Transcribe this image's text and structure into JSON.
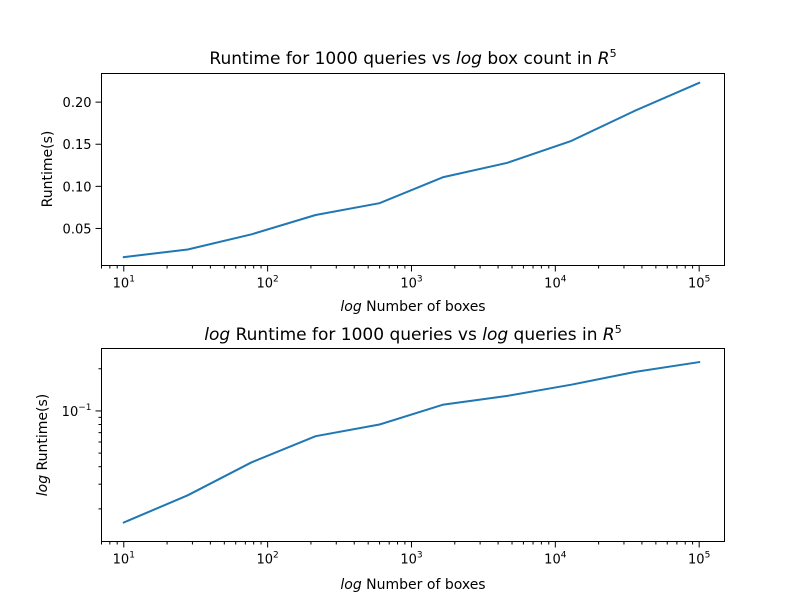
{
  "chart_data": [
    {
      "type": "line",
      "title": "Runtime for 1000 queries vs log box count in R^5",
      "title_parts": {
        "pre": "Runtime for 1000 queries vs ",
        "log": "log",
        "post": " box count in ",
        "var": "R",
        "exp": "5"
      },
      "xlabel_parts": {
        "log": "log",
        "rest": " Number of boxes"
      },
      "ylabel": "Runtime(s)",
      "xscale": "log",
      "yscale": "linear",
      "xlim": [
        7,
        150000
      ],
      "ylim": [
        0.006,
        0.234
      ],
      "xticks": [
        10,
        100,
        1000,
        10000,
        100000
      ],
      "xtick_exponents": [
        "1",
        "2",
        "3",
        "4",
        "5"
      ],
      "yticks": [
        0.05,
        0.1,
        0.15,
        0.2
      ],
      "ytick_labels": [
        "0.05",
        "0.10",
        "0.15",
        "0.20"
      ],
      "grid": false,
      "color": "#1f77b4",
      "x": [
        10,
        27.8,
        77.4,
        215.4,
        599.5,
        1668.1,
        4641.6,
        12915.5,
        35938.1,
        100000
      ],
      "y": [
        0.016,
        0.025,
        0.043,
        0.066,
        0.08,
        0.111,
        0.128,
        0.154,
        0.19,
        0.223
      ]
    },
    {
      "type": "line",
      "title": "log Runtime for 1000 queries vs log queries in R^5",
      "title_parts": {
        "log1": "log",
        "mid": " Runtime for 1000 queries vs ",
        "log2": "log",
        "post": " queries in ",
        "var": "R",
        "exp": "5"
      },
      "xlabel_parts": {
        "log": "log",
        "rest": " Number of boxes"
      },
      "ylabel_parts": {
        "log": "log",
        "rest": " Runtime(s)"
      },
      "xscale": "log",
      "yscale": "log",
      "xlim": [
        7,
        150000
      ],
      "ylim": [
        0.0117,
        0.279
      ],
      "xticks": [
        10,
        100,
        1000,
        10000,
        100000
      ],
      "xtick_exponents": [
        "1",
        "2",
        "3",
        "4",
        "5"
      ],
      "ytick_base": "10",
      "ytick_exponent": "−1",
      "ytick_value": 0.1,
      "yminor": [
        0.02,
        0.03,
        0.04,
        0.05,
        0.06,
        0.07,
        0.08,
        0.09,
        0.2
      ],
      "grid": false,
      "color": "#1f77b4",
      "x": [
        10,
        27.8,
        77.4,
        215.4,
        599.5,
        1668.1,
        4641.6,
        12915.5,
        35938.1,
        100000
      ],
      "y": [
        0.016,
        0.025,
        0.043,
        0.066,
        0.08,
        0.111,
        0.128,
        0.154,
        0.19,
        0.223
      ]
    }
  ]
}
